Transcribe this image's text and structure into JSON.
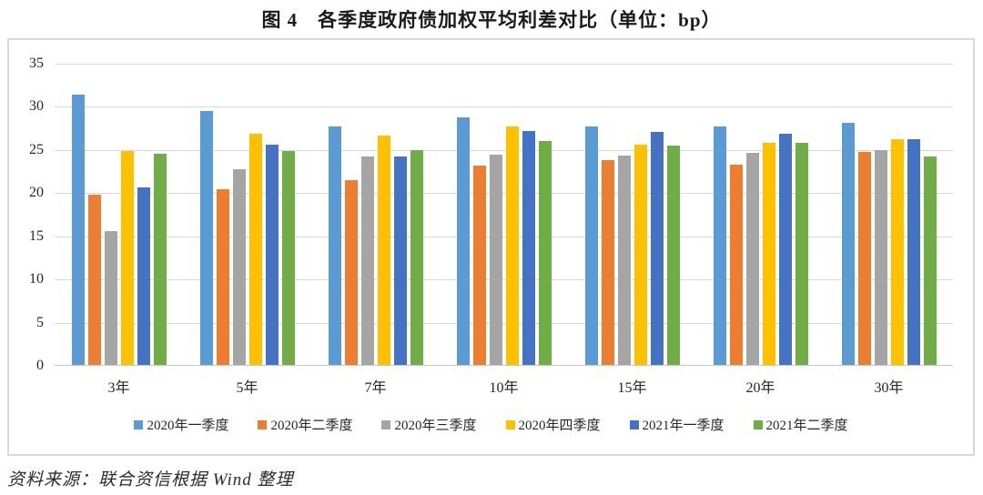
{
  "title": "图 4　各季度政府债加权平均利差对比（单位：bp）",
  "source": "资料来源：联合资信根据 Wind 整理",
  "colors": {
    "gridline": "#d9d9d9",
    "axis_line": "#c6c6c6",
    "chart_border": "#d9d9d9",
    "text": "#262626"
  },
  "chart_data": {
    "type": "bar",
    "title": "图 4　各季度政府债加权平均利差对比（单位：bp）",
    "unit": "bp",
    "categories": [
      "3年",
      "5年",
      "7年",
      "10年",
      "15年",
      "20年",
      "30年"
    ],
    "series": [
      {
        "name": "2020年一季度",
        "color": "#5B9BD5",
        "values": [
          31.4,
          29.5,
          27.7,
          28.8,
          27.7,
          27.7,
          28.1
        ]
      },
      {
        "name": "2020年二季度",
        "color": "#ED7D31",
        "values": [
          19.8,
          20.5,
          21.5,
          23.2,
          23.8,
          23.3,
          24.8
        ]
      },
      {
        "name": "2020年三季度",
        "color": "#A5A5A5",
        "values": [
          15.6,
          22.8,
          24.3,
          24.5,
          24.4,
          24.7,
          25.0
        ]
      },
      {
        "name": "2020年四季度",
        "color": "#FFC000",
        "values": [
          24.9,
          26.9,
          26.7,
          27.7,
          25.6,
          25.8,
          26.2
        ]
      },
      {
        "name": "2021年一季度",
        "color": "#4472C4",
        "values": [
          20.7,
          25.6,
          24.2,
          27.2,
          27.1,
          26.9,
          26.2
        ]
      },
      {
        "name": "2021年二季度",
        "color": "#70AD47",
        "values": [
          24.6,
          24.9,
          25.0,
          26.0,
          25.5,
          25.8,
          24.2
        ]
      }
    ],
    "xlabel": "",
    "ylabel": "",
    "ylim": [
      0,
      35
    ],
    "yticks": [
      0,
      5,
      10,
      15,
      20,
      25,
      30,
      35
    ],
    "grid": true,
    "legend_position": "bottom"
  }
}
